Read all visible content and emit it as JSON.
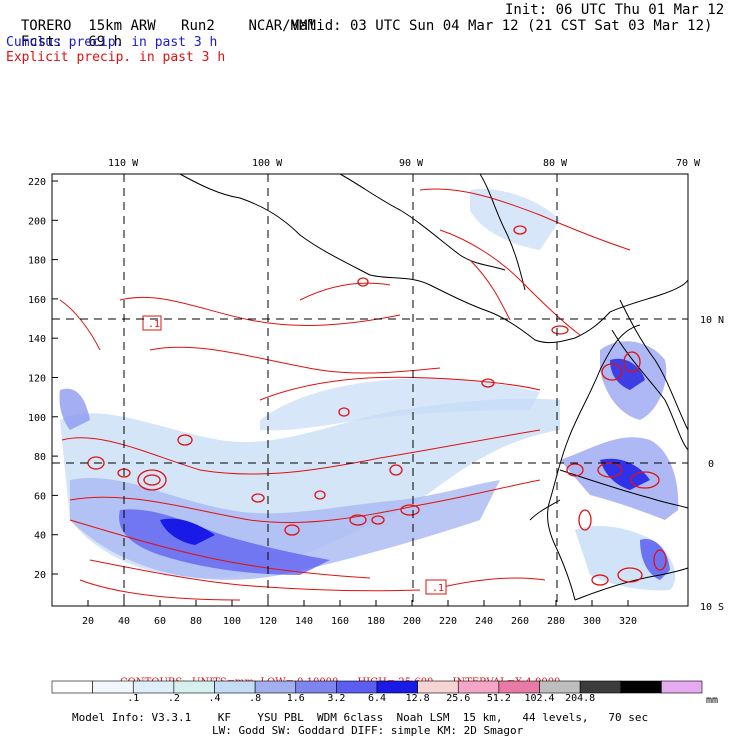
{
  "header": {
    "model": "TORERO",
    "resolution": "15km ARW",
    "run": "Run2",
    "org": "NCAR/MMM",
    "init": "Init: 06 UTC Thu 01 Mar 12",
    "fcst_label": "Fcst:",
    "fcst_value": "69 h",
    "valid": "Valid: 03 UTC Sun 04 Mar 12 (21 CST Sat 03 Mar 12)",
    "cumulus_label": "Cumulus precip. in past 3 h",
    "explicit_label": "Explicit precip. in past 3 h"
  },
  "map": {
    "top_lon_ticks": [
      "110 W",
      "100 W",
      "90 W",
      "80 W",
      "70 W"
    ],
    "right_lat_ticks": [
      "10 N",
      "0",
      "10 S"
    ],
    "y_ticks": [
      "220",
      "200",
      "180",
      "160",
      "140",
      "120",
      "100",
      "80",
      "60",
      "40",
      "20"
    ],
    "x_ticks": [
      "20",
      "40",
      "60",
      "80",
      "100",
      "120",
      "140",
      "160",
      "180",
      "200",
      "220",
      "240",
      "260",
      "280",
      "300",
      "320"
    ],
    "box_labels": [
      ".1",
      ".1"
    ],
    "colors": {
      "explicit": "#e01010",
      "cumulus_light": "#c6dcf6",
      "cumulus_mid": "#8c9af0",
      "cumulus_dark": "#2020e0",
      "coast": "#000000"
    }
  },
  "contours": {
    "label": "CONTOURS:",
    "units": "UNITS=mm",
    "low": "LOW= 0.10000",
    "high": "HIGH= 25.600",
    "interval": "INTERVAL=X 4.0000"
  },
  "colorbar": {
    "colors": [
      "#ffffff",
      "#f2f7fd",
      "#dfeefb",
      "#d6f0ee",
      "#c4dcf6",
      "#a3b0f0",
      "#7f85ef",
      "#5b5ef0",
      "#1a1ae6",
      "#f6d4d4",
      "#f4a5c8",
      "#e87aa8",
      "#bebebe",
      "#3c3c3c",
      "#000000",
      "#e6aaf0"
    ],
    "labels": [
      ".1",
      ".2",
      ".4",
      ".8",
      "1.6",
      "3.2",
      "6.4",
      "12.8",
      "25.6",
      "51.2",
      "102.4",
      "204.8"
    ],
    "unit": "mm"
  },
  "model_info": {
    "line1": "Model Info: V3.3.1    KF    YSU PBL  WDM 6class  Noah LSM  15 km,   44 levels,   70 sec",
    "line2": "LW: Godd SW: Goddard DIFF: simple KM: 2D Smagor"
  }
}
